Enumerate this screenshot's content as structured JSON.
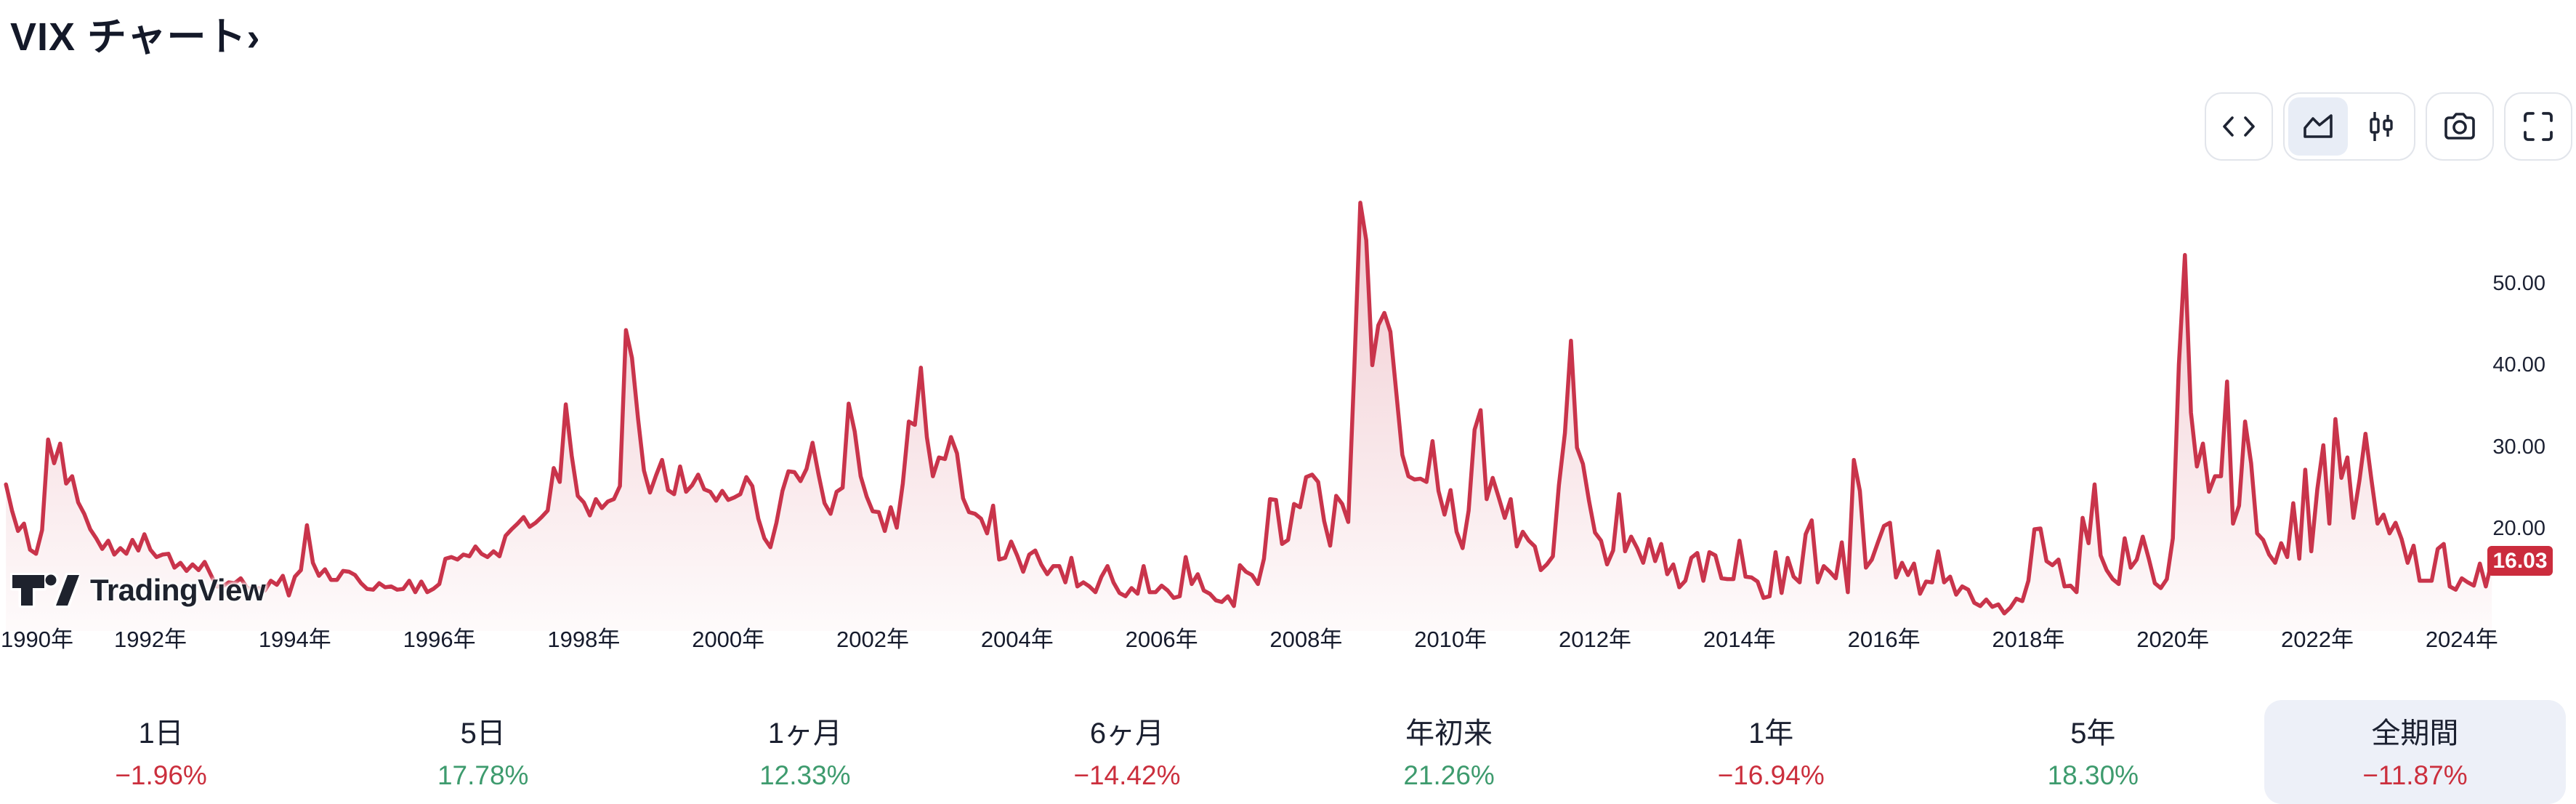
{
  "page": {
    "title": "VIX チャート›"
  },
  "toolbar": {
    "buttons": [
      "embed-code",
      "chart-style-area",
      "chart-style-candles",
      "snapshot",
      "fullscreen"
    ],
    "selected_style": "area",
    "selected_bg": "#e8edf6",
    "icon_color": "#1e2433"
  },
  "chart": {
    "y_axis_labels": [
      "50.00",
      "40.00",
      "30.00",
      "20.00"
    ],
    "y_axis_values": [
      50,
      40,
      30,
      20
    ],
    "x_axis_years": [
      1990,
      1992,
      1994,
      1996,
      1998,
      2000,
      2002,
      2004,
      2006,
      2008,
      2010,
      2012,
      2014,
      2016,
      2018,
      2020,
      2022,
      2024
    ],
    "x_axis_suffix": "年",
    "last_price_label": "16.03",
    "watermark": "TradingView",
    "line_color": "#c9344b",
    "badge_color": "#cb2c3d"
  },
  "chart_data": {
    "type": "area",
    "title": "VIX チャート",
    "series_name": "VIX",
    "x_start_year": 1990,
    "x_step_months": 1,
    "x_end_label": "2024年",
    "ylim": [
      8,
      62
    ],
    "y_ticks": [
      20,
      30,
      40,
      50
    ],
    "grid": false,
    "legend": false,
    "last_value": 16.03,
    "values": [
      25.4,
      22.2,
      19.7,
      20.6,
      17.4,
      16.9,
      19.8,
      30.9,
      28.0,
      30.4,
      25.5,
      26.4,
      23.2,
      21.8,
      19.9,
      18.8,
      17.5,
      18.5,
      16.8,
      17.6,
      16.9,
      18.6,
      17.3,
      19.3,
      17.4,
      16.5,
      16.8,
      16.9,
      15.2,
      15.8,
      14.8,
      15.6,
      14.9,
      15.9,
      14.4,
      12.9,
      12.9,
      13.4,
      13.3,
      13.9,
      12.8,
      12.4,
      12.7,
      12.4,
      13.6,
      13.1,
      14.2,
      11.8,
      14.1,
      14.9,
      20.4,
      15.8,
      14.2,
      15.0,
      13.7,
      13.7,
      14.8,
      14.7,
      14.3,
      13.3,
      12.6,
      12.5,
      13.3,
      12.8,
      12.9,
      12.5,
      12.6,
      13.6,
      12.2,
      13.5,
      12.2,
      12.6,
      13.2,
      16.3,
      16.5,
      16.2,
      16.8,
      16.6,
      17.8,
      16.9,
      16.5,
      17.2,
      16.6,
      19.1,
      19.9,
      20.6,
      21.4,
      20.2,
      20.7,
      21.4,
      22.2,
      27.4,
      25.7,
      35.2,
      28.9,
      24.0,
      23.2,
      21.6,
      23.6,
      22.5,
      23.3,
      23.6,
      25.2,
      44.3,
      40.9,
      33.5,
      27.1,
      24.4,
      26.5,
      28.4,
      24.7,
      24.2,
      27.6,
      24.5,
      25.3,
      26.6,
      24.8,
      24.5,
      23.4,
      24.6,
      23.5,
      23.8,
      24.2,
      26.3,
      25.2,
      21.2,
      18.8,
      17.7,
      20.7,
      24.6,
      27.0,
      26.9,
      25.8,
      27.3,
      30.5,
      26.6,
      23.1,
      21.8,
      24.5,
      25.0,
      35.3,
      31.9,
      26.4,
      23.9,
      22.1,
      22.0,
      19.7,
      22.6,
      20.1,
      25.5,
      33.1,
      32.7,
      39.7,
      31.2,
      26.4,
      28.7,
      28.5,
      31.2,
      29.2,
      23.7,
      22.0,
      21.8,
      21.2,
      19.4,
      22.8,
      16.2,
      16.4,
      18.4,
      16.7,
      14.7,
      16.8,
      17.3,
      15.6,
      14.4,
      15.4,
      15.4,
      13.4,
      16.4,
      12.9,
      13.4,
      12.9,
      12.2,
      14.1,
      15.4,
      13.4,
      12.1,
      11.7,
      12.7,
      12.0,
      15.4,
      12.2,
      12.2,
      13.0,
      12.4,
      11.5,
      11.7,
      16.5,
      13.2,
      14.4,
      12.4,
      12.0,
      11.2,
      11.0,
      11.7,
      10.5,
      15.5,
      14.7,
      14.3,
      13.2,
      16.3,
      23.6,
      23.5,
      18.1,
      18.6,
      23.0,
      22.6,
      26.3,
      26.6,
      25.7,
      20.9,
      17.9,
      24.0,
      23.0,
      20.8,
      39.4,
      59.9,
      55.3,
      40.0,
      44.9,
      46.4,
      44.1,
      36.5,
      29.0,
      26.4,
      26.0,
      26.1,
      25.7,
      30.7,
      24.6,
      21.7,
      24.7,
      19.6,
      17.6,
      22.2,
      32.1,
      34.5,
      23.6,
      26.2,
      23.8,
      21.3,
      23.6,
      17.8,
      19.6,
      18.5,
      17.8,
      14.9,
      15.6,
      16.6,
      25.3,
      31.7,
      43.0,
      29.9,
      27.9,
      23.4,
      19.5,
      18.5,
      15.6,
      17.3,
      24.2,
      17.2,
      19.0,
      17.6,
      15.8,
      18.7,
      16.0,
      18.1,
      14.4,
      15.6,
      12.8,
      13.6,
      16.4,
      17.0,
      13.6,
      17.1,
      16.7,
      13.9,
      13.8,
      13.8,
      18.5,
      14.1,
      14.0,
      13.5,
      11.5,
      11.7,
      17.1,
      12.1,
      16.4,
      14.1,
      13.4,
      19.3,
      21.0,
      13.4,
      15.4,
      14.7,
      13.9,
      18.3,
      12.2,
      28.4,
      24.6,
      15.2,
      16.2,
      18.3,
      20.3,
      20.7,
      14.0,
      15.8,
      14.3,
      15.7,
      12.0,
      13.5,
      13.4,
      17.2,
      13.4,
      14.1,
      11.9,
      12.9,
      12.5,
      10.9,
      10.5,
      11.3,
      10.4,
      10.7,
      9.6,
      10.3,
      11.4,
      11.1,
      13.6,
      19.9,
      20.0,
      16.0,
      15.5,
      16.2,
      12.9,
      13.0,
      12.2,
      21.3,
      18.2,
      25.4,
      16.7,
      14.9,
      13.8,
      13.2,
      18.8,
      15.2,
      16.2,
      19.0,
      16.3,
      13.3,
      12.7,
      13.8,
      18.8,
      40.1,
      53.5,
      34.2,
      27.6,
      30.4,
      24.5,
      26.4,
      26.4,
      38.0,
      20.6,
      22.8,
      33.1,
      28.0,
      19.4,
      18.6,
      16.8,
      15.8,
      18.2,
      16.5,
      23.1,
      16.3,
      27.2,
      17.2,
      24.8,
      30.2,
      20.6,
      33.4,
      26.2,
      28.7,
      21.3,
      25.9,
      31.6,
      25.9,
      20.6,
      21.7,
      19.4,
      20.7,
      18.7,
      15.8,
      17.9,
      13.6,
      13.6,
      13.6,
      17.5,
      18.1,
      12.9,
      12.5,
      13.9,
      13.4,
      13.0,
      15.7,
      12.9,
      16.03
    ]
  },
  "periods": {
    "selected_index": 7,
    "items": [
      {
        "label": "1日",
        "change": "−1.96%",
        "direction": "down"
      },
      {
        "label": "5日",
        "change": "17.78%",
        "direction": "up"
      },
      {
        "label": "1ヶ月",
        "change": "12.33%",
        "direction": "up"
      },
      {
        "label": "6ヶ月",
        "change": "−14.42%",
        "direction": "down"
      },
      {
        "label": "年初来",
        "change": "21.26%",
        "direction": "up"
      },
      {
        "label": "1年",
        "change": "−16.94%",
        "direction": "down"
      },
      {
        "label": "5年",
        "change": "18.30%",
        "direction": "up"
      },
      {
        "label": "全期間",
        "change": "−11.87%",
        "direction": "down"
      }
    ]
  }
}
